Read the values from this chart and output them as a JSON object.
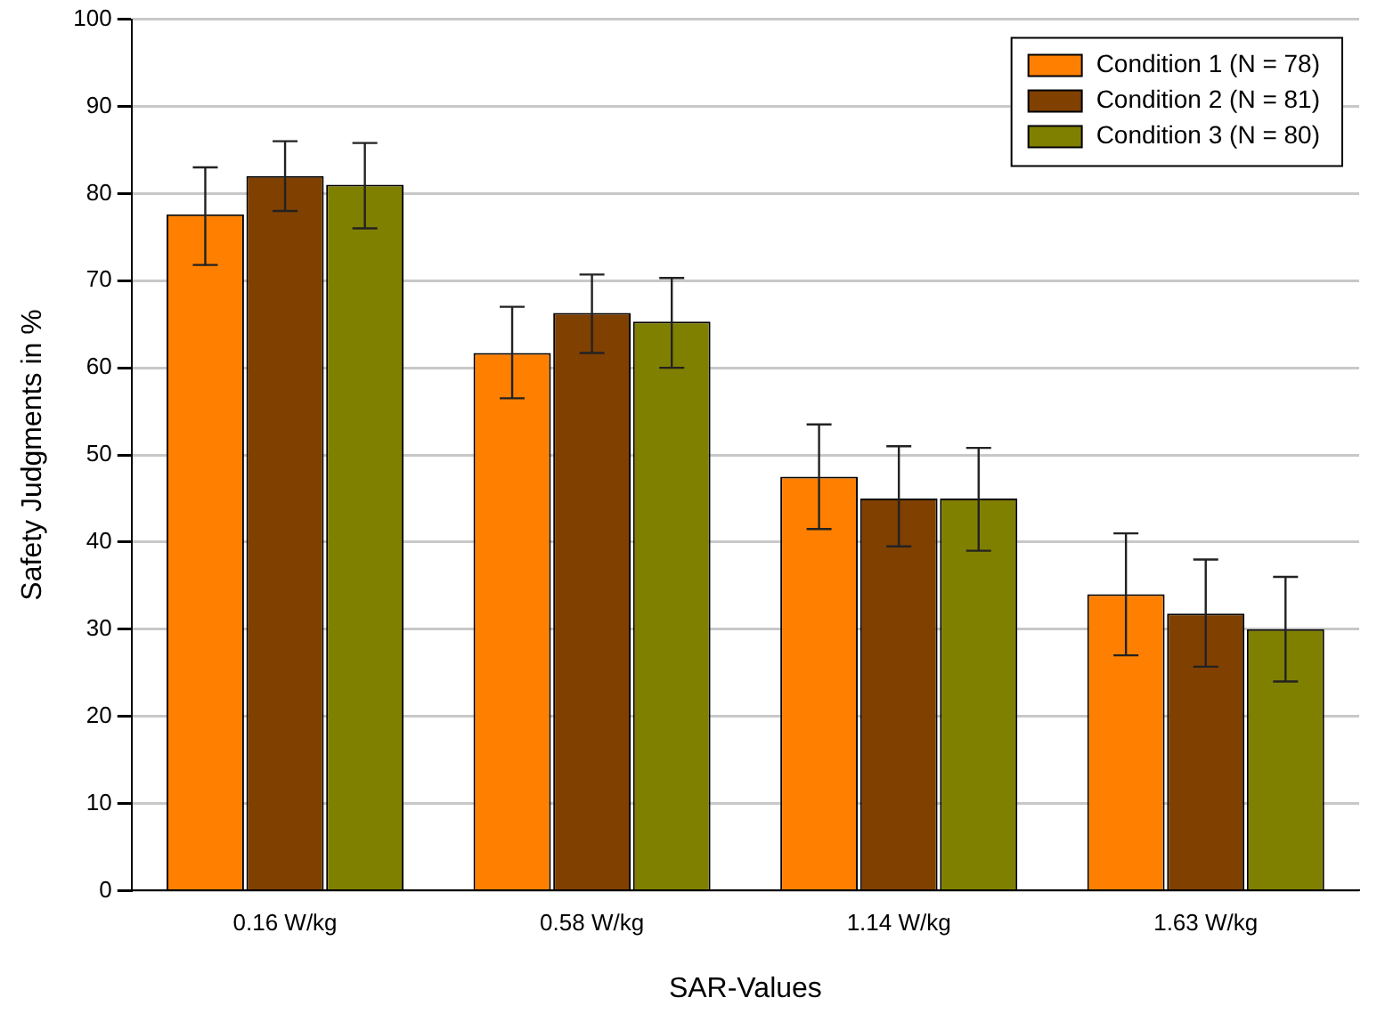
{
  "chart_data": {
    "type": "bar",
    "xlabel": "SAR-Values",
    "ylabel": "Safety Judgments in %",
    "categories": [
      "0.16 W/kg",
      "0.58 W/kg",
      "1.14 W/kg",
      "1.63 W/kg"
    ],
    "series": [
      {
        "name": "Condition 1 (N = 78)",
        "color": "#ff8000",
        "values": [
          77.6,
          61.7,
          47.5,
          34
        ],
        "errors": [
          [
            71.8,
            83
          ],
          [
            56.5,
            67
          ],
          [
            41.5,
            53.5
          ],
          [
            27,
            41
          ]
        ]
      },
      {
        "name": "Condition 2 (N = 81)",
        "color": "#804000",
        "values": [
          82,
          66.3,
          45,
          31.8
        ],
        "errors": [
          [
            78,
            86
          ],
          [
            61.7,
            70.7
          ],
          [
            39.5,
            51
          ],
          [
            25.7,
            38
          ]
        ]
      },
      {
        "name": "Condition 3 (N = 80)",
        "color": "#808000",
        "values": [
          81,
          65.3,
          45,
          30
        ],
        "errors": [
          [
            76,
            85.8
          ],
          [
            60,
            70.3
          ],
          [
            39,
            50.8
          ],
          [
            24,
            36
          ]
        ]
      }
    ],
    "ylim": [
      0,
      100
    ],
    "yticks": [
      0,
      10,
      20,
      30,
      40,
      50,
      60,
      70,
      80,
      90,
      100
    ],
    "grid": "y",
    "legend": "top right"
  }
}
